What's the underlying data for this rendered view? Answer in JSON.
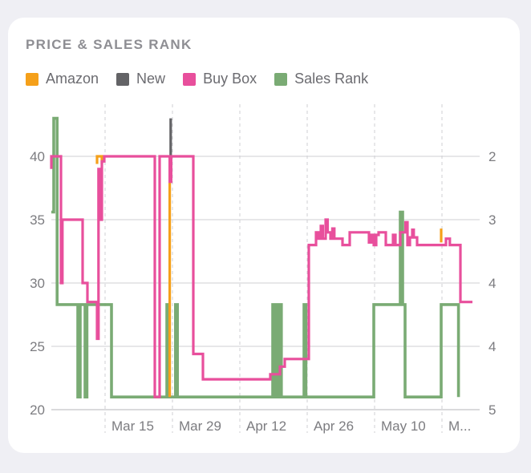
{
  "card": {
    "title": "PRICE & SALES RANK"
  },
  "legend": [
    {
      "label": "Amazon",
      "color": "#f5a01a"
    },
    {
      "label": "New",
      "color": "#636366"
    },
    {
      "label": "Buy Box",
      "color": "#e84f9c"
    },
    {
      "label": "Sales Rank",
      "color": "#7aab74"
    }
  ],
  "chart_data": {
    "type": "line",
    "title": "PRICE & SALES RANK",
    "x_ticks": [
      "Mar 15",
      "Mar 29",
      "Apr 12",
      "Apr 26",
      "May 10",
      "M..."
    ],
    "y_left": {
      "ticks": [
        "40",
        "35",
        "30",
        "25",
        "20"
      ],
      "range": [
        20,
        40
      ]
    },
    "y_right": {
      "ticks": [
        "2",
        "3",
        "4",
        "4",
        "5"
      ],
      "range": [
        2,
        5
      ]
    },
    "grid": true,
    "legend_position": "top-left",
    "series": [
      {
        "name": "Sales Rank",
        "color": "#7aab74",
        "points": [
          [
            0,
            35.6
          ],
          [
            0.5,
            35.6
          ],
          [
            0.5,
            43
          ],
          [
            1.2,
            43
          ],
          [
            1.2,
            28.3
          ],
          [
            5.5,
            28.3
          ],
          [
            5.5,
            21
          ],
          [
            6,
            21
          ],
          [
            6,
            28.3
          ],
          [
            7,
            28.3
          ],
          [
            7,
            21
          ],
          [
            7.4,
            21
          ],
          [
            7.4,
            28.3
          ],
          [
            12.5,
            28.3
          ],
          [
            12.5,
            21
          ],
          [
            24,
            21
          ],
          [
            24,
            28.3
          ],
          [
            24.4,
            28.3
          ],
          [
            24.4,
            21
          ],
          [
            25.8,
            21
          ],
          [
            25.8,
            28.3
          ],
          [
            26.2,
            28.3
          ],
          [
            26.2,
            21
          ],
          [
            46,
            21
          ],
          [
            46,
            28.3
          ],
          [
            46.6,
            28.3
          ],
          [
            46.6,
            21
          ],
          [
            47.2,
            21
          ],
          [
            47.2,
            28.3
          ],
          [
            47.8,
            28.3
          ],
          [
            47.8,
            21
          ],
          [
            52.5,
            21
          ],
          [
            52.5,
            28.3
          ],
          [
            52.9,
            28.3
          ],
          [
            52.9,
            21
          ],
          [
            67,
            21
          ],
          [
            67,
            28.3
          ],
          [
            72.5,
            28.3
          ],
          [
            72.5,
            35.6
          ],
          [
            73,
            35.6
          ],
          [
            73,
            28.3
          ],
          [
            73.5,
            28.3
          ],
          [
            73.5,
            21
          ],
          [
            81,
            21
          ],
          [
            81,
            28.3
          ],
          [
            84.6,
            28.3
          ],
          [
            84.6,
            21
          ]
        ]
      },
      {
        "name": "Amazon",
        "color": "#f5a01a",
        "points": [
          [
            9.5,
            39.4
          ],
          [
            9.5,
            40
          ],
          [
            10.5,
            40
          ],
          [
            10.5,
            39.4
          ]
        ]
      },
      {
        "name": "Amazon",
        "color": "#f5a01a",
        "points": [
          [
            24.6,
            21
          ],
          [
            24.6,
            38
          ]
        ]
      },
      {
        "name": "Amazon",
        "color": "#f5a01a",
        "points": [
          [
            81,
            33.2
          ],
          [
            81,
            34.3
          ]
        ]
      },
      {
        "name": "New",
        "color": "#636366",
        "points": [
          [
            24.8,
            40
          ],
          [
            24.8,
            43
          ]
        ]
      },
      {
        "name": "Buy Box",
        "color": "#e84f9c",
        "points": [
          [
            0,
            39
          ],
          [
            0,
            40
          ],
          [
            2,
            40
          ],
          [
            2,
            30
          ],
          [
            2.3,
            30
          ],
          [
            2.3,
            35
          ],
          [
            6.5,
            35
          ],
          [
            6.5,
            30
          ],
          [
            7.5,
            30
          ],
          [
            7.5,
            28.5
          ],
          [
            9.5,
            28.5
          ],
          [
            9.5,
            25.6
          ],
          [
            9.8,
            25.6
          ],
          [
            9.8,
            39
          ],
          [
            10,
            39
          ],
          [
            10,
            35
          ],
          [
            10.5,
            35
          ],
          [
            10.5,
            39.6
          ],
          [
            11,
            39.6
          ],
          [
            11,
            40
          ],
          [
            21.5,
            40
          ],
          [
            21.5,
            21
          ],
          [
            22.5,
            21
          ],
          [
            22.5,
            40
          ],
          [
            24.6,
            40
          ],
          [
            24.6,
            38
          ],
          [
            24.9,
            38
          ],
          [
            24.9,
            40
          ],
          [
            29.5,
            40
          ],
          [
            29.5,
            24.4
          ],
          [
            31.5,
            24.4
          ],
          [
            31.5,
            22.4
          ],
          [
            45.5,
            22.4
          ],
          [
            45.5,
            22.8
          ],
          [
            47.5,
            22.8
          ],
          [
            47.5,
            23.4
          ],
          [
            48.5,
            23.4
          ],
          [
            48.5,
            24
          ],
          [
            53.5,
            24
          ],
          [
            53.5,
            33
          ],
          [
            55,
            33
          ],
          [
            55,
            34
          ],
          [
            55.5,
            34
          ],
          [
            55.5,
            33.5
          ],
          [
            56,
            33.5
          ],
          [
            56,
            34.5
          ],
          [
            56.4,
            34.5
          ],
          [
            56.4,
            33.5
          ],
          [
            57,
            33.5
          ],
          [
            57,
            35
          ],
          [
            57.4,
            35
          ],
          [
            57.4,
            34
          ],
          [
            58,
            34
          ],
          [
            58,
            33.5
          ],
          [
            58.4,
            33.5
          ],
          [
            58.4,
            34.3
          ],
          [
            58.8,
            34.3
          ],
          [
            58.8,
            33.5
          ],
          [
            60.5,
            33.5
          ],
          [
            60.5,
            33
          ],
          [
            62,
            33
          ],
          [
            62,
            34
          ],
          [
            66,
            34
          ],
          [
            66,
            33.2
          ],
          [
            66.5,
            33.2
          ],
          [
            66.5,
            33.8
          ],
          [
            67,
            33.8
          ],
          [
            67,
            33
          ],
          [
            67.5,
            33
          ],
          [
            67.5,
            33.8
          ],
          [
            68,
            33.8
          ],
          [
            68,
            34
          ],
          [
            69.5,
            34
          ],
          [
            69.5,
            33
          ],
          [
            71,
            33
          ],
          [
            71,
            33.8
          ],
          [
            71.5,
            33.8
          ],
          [
            71.5,
            33
          ],
          [
            72.5,
            33
          ],
          [
            72.5,
            34
          ],
          [
            73.6,
            34
          ],
          [
            73.6,
            34.8
          ],
          [
            74,
            34.8
          ],
          [
            74,
            33
          ],
          [
            74.5,
            33
          ],
          [
            74.5,
            33.6
          ],
          [
            75,
            33.6
          ],
          [
            75,
            34.2
          ],
          [
            75.3,
            34.2
          ],
          [
            75.3,
            33.6
          ],
          [
            76,
            33.6
          ],
          [
            76,
            33
          ],
          [
            82,
            33
          ],
          [
            82,
            33.5
          ],
          [
            82.8,
            33.5
          ],
          [
            82.8,
            33
          ],
          [
            85,
            33
          ],
          [
            85,
            28.5
          ],
          [
            87.5,
            28.5
          ]
        ]
      }
    ]
  }
}
